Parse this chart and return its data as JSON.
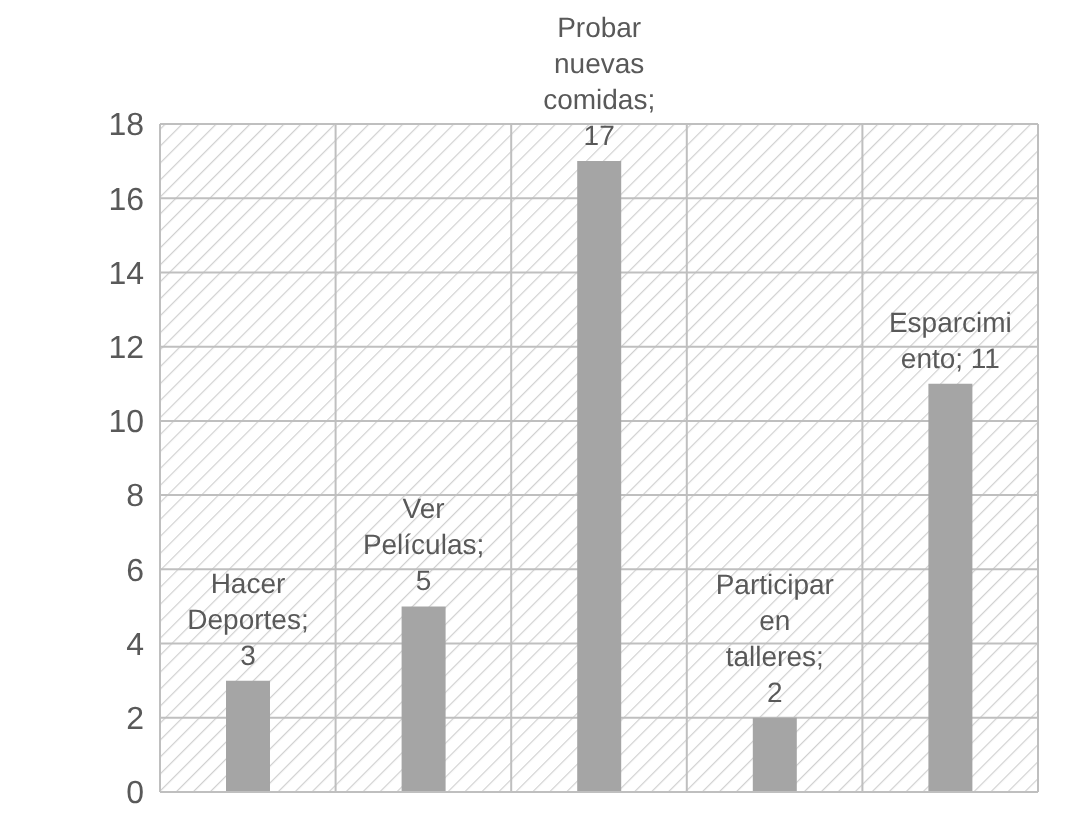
{
  "chart_data": {
    "type": "bar",
    "categories": [
      null,
      null,
      null,
      null,
      null
    ],
    "values": [
      3,
      5,
      17,
      2,
      11
    ],
    "value_labels": [
      "Hacer Deportes; 3",
      "Ver Películas; 5",
      "Probar nuevas comidas; 17",
      "Participar en talleres; 2",
      "Esparcimiento; 11"
    ],
    "color": "#a5a5a5",
    "ylim": [
      0,
      18
    ],
    "yticks": [
      0,
      2,
      4,
      6,
      8,
      10,
      12,
      14,
      16,
      18
    ],
    "grid": true
  }
}
